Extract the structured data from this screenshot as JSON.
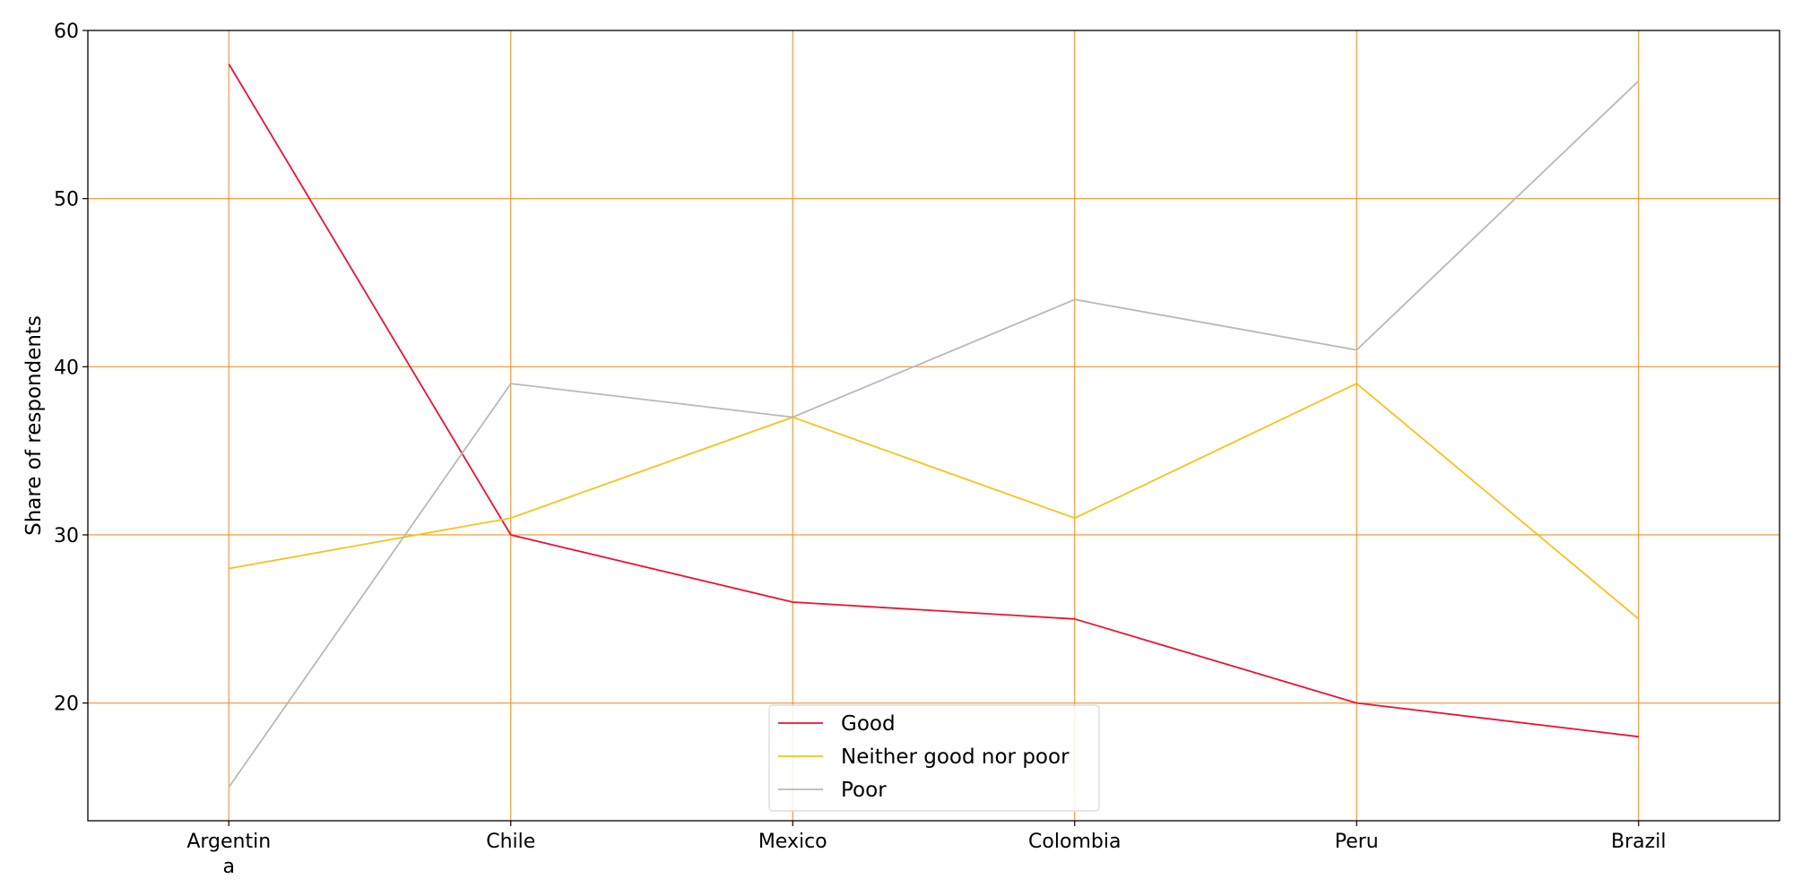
{
  "chart_data": {
    "type": "line",
    "title": "",
    "xlabel": "",
    "ylabel": "Share of respondents",
    "categories": [
      "Argentina",
      "Chile",
      "Mexico",
      "Colombia",
      "Peru",
      "Brazil"
    ],
    "category_tick_lines": [
      [
        "Argentin",
        "a"
      ],
      [
        "Chile"
      ],
      [
        "Mexico"
      ],
      [
        "Colombia"
      ],
      [
        "Peru"
      ],
      [
        "Brazil"
      ]
    ],
    "ylim": [
      13,
      60
    ],
    "yticks": [
      20,
      30,
      40,
      50,
      60
    ],
    "grid": true,
    "grid_color": "#f0922b",
    "legend_position": "bottom-center",
    "series": [
      {
        "name": "Good",
        "color": "#ee1133",
        "values": [
          58,
          30,
          26,
          25,
          20,
          18
        ]
      },
      {
        "name": "Neither good nor poor",
        "color": "#f7c31a",
        "values": [
          28,
          31,
          37,
          31,
          39,
          25
        ]
      },
      {
        "name": "Poor",
        "color": "#b9b9b9",
        "values": [
          15,
          39,
          37,
          44,
          41,
          57
        ]
      }
    ]
  }
}
